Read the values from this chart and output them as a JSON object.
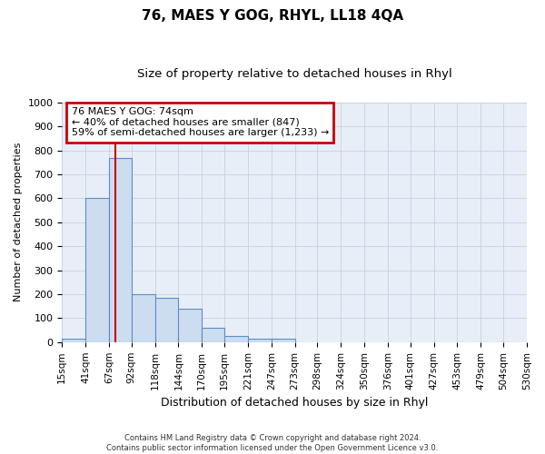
{
  "title": "76, MAES Y GOG, RHYL, LL18 4QA",
  "subtitle": "Size of property relative to detached houses in Rhyl",
  "xlabel": "Distribution of detached houses by size in Rhyl",
  "ylabel": "Number of detached properties",
  "footer_line1": "Contains HM Land Registry data © Crown copyright and database right 2024.",
  "footer_line2": "Contains public sector information licensed under the Open Government Licence v3.0.",
  "bin_edges": [
    15,
    41,
    67,
    92,
    118,
    144,
    170,
    195,
    221,
    247,
    273,
    298,
    324,
    350,
    376,
    401,
    427,
    453,
    479,
    504,
    530
  ],
  "bar_heights": [
    15,
    600,
    770,
    200,
    185,
    140,
    60,
    25,
    15,
    15,
    0,
    0,
    0,
    0,
    0,
    0,
    0,
    0,
    0,
    0
  ],
  "bar_color": "#ccddf0",
  "bar_edge_color": "#5b8ec4",
  "red_line_x": 74,
  "ylim": [
    0,
    1000
  ],
  "ytick_max": 1000,
  "ytick_step": 100,
  "annotation_text": "76 MAES Y GOG: 74sqm\n← 40% of detached houses are smaller (847)\n59% of semi-detached houses are larger (1,233) →",
  "annotation_box_color": "#ffffff",
  "annotation_box_edge_color": "#cc0000",
  "background_color": "#e8eef8",
  "grid_color": "#c8d0e0",
  "title_fontsize": 11,
  "subtitle_fontsize": 9.5,
  "ylabel_fontsize": 8,
  "xlabel_fontsize": 9,
  "tick_fontsize": 8,
  "annot_fontsize": 8
}
